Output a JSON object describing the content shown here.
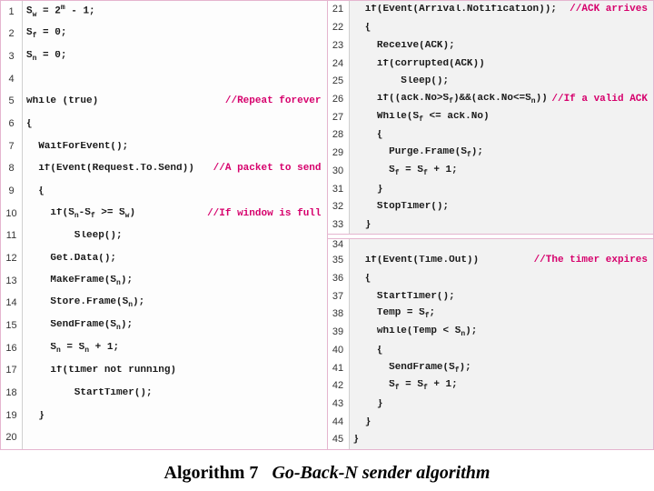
{
  "caption_label": "Algorithm 7",
  "caption_title": "Go-Back-N sender algorithm",
  "colors": {
    "border": "#e5b5cf",
    "comment": "#d6006c",
    "code": "#1a1a1a",
    "line_number": "#333333",
    "bg_code_left": "#fdfdfd",
    "bg_code_right": "#f2f2f2",
    "bg_linenum": "#ffffff"
  },
  "typography": {
    "code_font": "Courier New",
    "code_fontsize": 11,
    "code_weight": "bold",
    "caption_font": "Times New Roman",
    "caption_fontsize": 20
  },
  "left": [
    {
      "n": 1,
      "code": "S_w = 2^m - 1;",
      "cmt": ""
    },
    {
      "n": 2,
      "code": "S_f = 0;",
      "cmt": ""
    },
    {
      "n": 3,
      "code": "S_n = 0;",
      "cmt": ""
    },
    {
      "n": 4,
      "code": "",
      "cmt": ""
    },
    {
      "n": 5,
      "code": "while (true)",
      "cmt": "//Repeat forever"
    },
    {
      "n": 6,
      "code": "{",
      "cmt": ""
    },
    {
      "n": 7,
      "code": "  WaitForEvent();",
      "cmt": ""
    },
    {
      "n": 8,
      "code": "  if(Event(Request.To.Send))",
      "cmt": "//A packet to send"
    },
    {
      "n": 9,
      "code": "  {",
      "cmt": ""
    },
    {
      "n": 10,
      "code": "    if(S_n-S_f >= S_w)",
      "cmt": "//If window is full"
    },
    {
      "n": 11,
      "code": "        Sleep();",
      "cmt": ""
    },
    {
      "n": 12,
      "code": "    Get.Data();",
      "cmt": ""
    },
    {
      "n": 13,
      "code": "    MakeFrame(S_n);",
      "cmt": ""
    },
    {
      "n": 14,
      "code": "    Store.Frame(S_n);",
      "cmt": ""
    },
    {
      "n": 15,
      "code": "    SendFrame(S_n);",
      "cmt": ""
    },
    {
      "n": 16,
      "code": "    S_n = S_n + 1;",
      "cmt": ""
    },
    {
      "n": 17,
      "code": "    if(timer not running)",
      "cmt": ""
    },
    {
      "n": 18,
      "code": "        StartTimer();",
      "cmt": ""
    },
    {
      "n": 19,
      "code": "  }",
      "cmt": ""
    },
    {
      "n": 20,
      "code": "",
      "cmt": ""
    }
  ],
  "right": [
    {
      "n": 21,
      "code": "  if(Event(Arrival.Notification));",
      "cmt": "//ACK arrives"
    },
    {
      "n": 22,
      "code": "  {",
      "cmt": ""
    },
    {
      "n": 23,
      "code": "    Receive(ACK);",
      "cmt": ""
    },
    {
      "n": 24,
      "code": "    if(corrupted(ACK))",
      "cmt": ""
    },
    {
      "n": 25,
      "code": "        Sleep();",
      "cmt": ""
    },
    {
      "n": 26,
      "code": "    if((ack.No>S_f)&&(ack.No<=S_n))",
      "cmt": "//If a valid ACK"
    },
    {
      "n": 27,
      "code": "    While(S_f <= ack.No)",
      "cmt": ""
    },
    {
      "n": 28,
      "code": "    {",
      "cmt": ""
    },
    {
      "n": 29,
      "code": "      Purge.Frame(S_f);",
      "cmt": ""
    },
    {
      "n": 30,
      "code": "      S_f = S_f + 1;",
      "cmt": ""
    },
    {
      "n": 31,
      "code": "    }",
      "cmt": ""
    },
    {
      "n": 32,
      "code": "    StopTimer();",
      "cmt": ""
    },
    {
      "n": 33,
      "code": "  }",
      "cmt": ""
    },
    {
      "n": 34,
      "code": "SEP",
      "cmt": ""
    },
    {
      "n": 35,
      "code": "  if(Event(Time.Out))",
      "cmt": "//The timer expires"
    },
    {
      "n": 36,
      "code": "  {",
      "cmt": ""
    },
    {
      "n": 37,
      "code": "    StartTimer();",
      "cmt": ""
    },
    {
      "n": 38,
      "code": "    Temp = S_f;",
      "cmt": ""
    },
    {
      "n": 39,
      "code": "    while(Temp < S_n);",
      "cmt": ""
    },
    {
      "n": 40,
      "code": "    {",
      "cmt": ""
    },
    {
      "n": 41,
      "code": "      SendFrame(S_f);",
      "cmt": ""
    },
    {
      "n": 42,
      "code": "      S_f = S_f + 1;",
      "cmt": ""
    },
    {
      "n": 43,
      "code": "    }",
      "cmt": ""
    },
    {
      "n": 44,
      "code": "  }",
      "cmt": ""
    },
    {
      "n": 45,
      "code": "}",
      "cmt": ""
    }
  ]
}
